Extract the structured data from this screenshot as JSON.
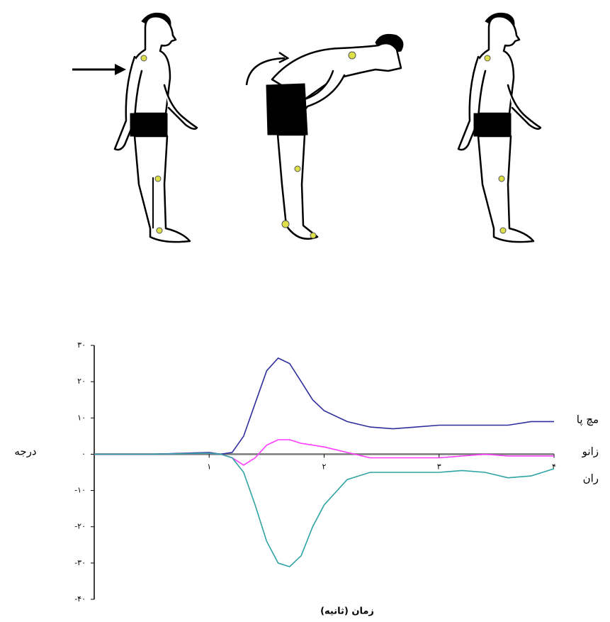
{
  "chart_data": {
    "type": "line",
    "y_label": "درجه",
    "x_label": "زمان (ثانیه)",
    "x": [
      0,
      0.5,
      1,
      1.1,
      1.2,
      1.3,
      1.4,
      1.5,
      1.6,
      1.7,
      1.8,
      1.9,
      2.0,
      2.2,
      2.4,
      2.6,
      2.8,
      3.0,
      3.2,
      3.4,
      3.6,
      3.8,
      4.0
    ],
    "series": [
      {
        "name": "مچ پا",
        "color": "#2e2e9c",
        "values": [
          0,
          0,
          0.5,
          0,
          0.5,
          5,
          14,
          23,
          26.5,
          25,
          20,
          15,
          12,
          9,
          7.5,
          7,
          7.5,
          8,
          8,
          8,
          8,
          9,
          9
        ]
      },
      {
        "name": "زانو",
        "color": "#ff3cff",
        "values": [
          0,
          0,
          0.3,
          0,
          -1,
          -3,
          -1,
          2.5,
          4,
          4,
          3,
          2.5,
          2,
          0.5,
          -1,
          -1,
          -1,
          -1,
          -0.5,
          0,
          -0.5,
          -0.5,
          -0.5
        ]
      },
      {
        "name": "ران",
        "color": "#2fa3a3",
        "values": [
          0,
          0,
          0.3,
          0,
          -1,
          -5,
          -14,
          -24,
          -30,
          -31,
          -28,
          -20,
          -14,
          -7,
          -5,
          -5,
          -5,
          -5,
          -4.5,
          -5,
          -6.5,
          -6,
          -4
        ]
      }
    ],
    "xlim": [
      0,
      4
    ],
    "xticks": [
      {
        "value": 1,
        "label": "۱"
      },
      {
        "value": 2,
        "label": "۲"
      },
      {
        "value": 3,
        "label": "۳"
      },
      {
        "value": 4,
        "label": "۴"
      }
    ],
    "ylim": [
      -40,
      30
    ],
    "yticks": [
      {
        "value": 30,
        "label": "۳۰"
      },
      {
        "value": 20,
        "label": "۲۰"
      },
      {
        "value": 10,
        "label": "۱۰"
      },
      {
        "value": 0,
        "label": "۰"
      },
      {
        "value": -10,
        "label": "-۱۰"
      },
      {
        "value": -20,
        "label": "-۲۰"
      },
      {
        "value": -30,
        "label": "-۳۰"
      },
      {
        "value": -40,
        "label": "-۴۰"
      }
    ]
  }
}
